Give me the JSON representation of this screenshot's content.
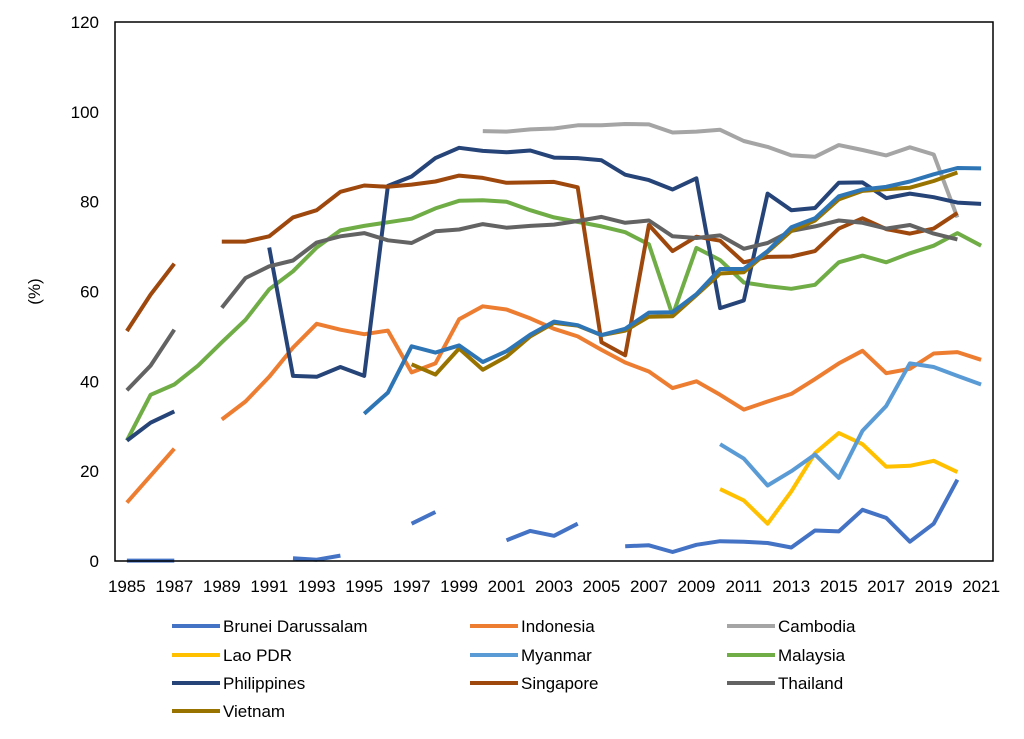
{
  "chart_data": {
    "type": "line",
    "title": "",
    "xlabel": "",
    "ylabel": "(%)",
    "xlim": [
      1985,
      2021
    ],
    "ylim": [
      0,
      120
    ],
    "yticks": [
      0,
      20,
      40,
      60,
      80,
      100,
      120
    ],
    "xticks": [
      1985,
      1987,
      1989,
      1991,
      1993,
      1995,
      1997,
      1999,
      2001,
      2003,
      2005,
      2007,
      2009,
      2011,
      2013,
      2015,
      2017,
      2019,
      2021
    ],
    "grid": false,
    "legend_position": "bottom",
    "x": [
      1985,
      1986,
      1987,
      1988,
      1989,
      1990,
      1991,
      1992,
      1993,
      1994,
      1995,
      1996,
      1997,
      1998,
      1999,
      2000,
      2001,
      2002,
      2003,
      2004,
      2005,
      2006,
      2007,
      2008,
      2009,
      2010,
      2011,
      2012,
      2013,
      2014,
      2015,
      2016,
      2017,
      2018,
      2019,
      2020,
      2021
    ],
    "series": [
      {
        "name": "Brunei Darussalam",
        "color": "#4472c4",
        "values": [
          0.1,
          0.1,
          0.1,
          null,
          null,
          null,
          null,
          0.6,
          0.3,
          1.2,
          null,
          null,
          8.3,
          10.9,
          null,
          null,
          4.6,
          6.7,
          5.6,
          8.3,
          null,
          3.3,
          3.5,
          2.0,
          3.6,
          4.4,
          4.3,
          4.0,
          3.0,
          6.8,
          6.6,
          11.4,
          9.6,
          4.3,
          8.3,
          18.1,
          null
        ]
      },
      {
        "name": "Indonesia",
        "color": "#ed7d31",
        "values": [
          13.0,
          19.0,
          25.0,
          null,
          31.5,
          35.5,
          41.0,
          47.5,
          52.8,
          51.5,
          50.5,
          51.3,
          42.0,
          44.0,
          53.8,
          56.7,
          56.0,
          54.0,
          51.7,
          50.0,
          47.0,
          44.2,
          42.2,
          38.5,
          40.0,
          37.0,
          33.7,
          35.5,
          37.2,
          40.5,
          44.0,
          46.8,
          41.8,
          42.8,
          46.2,
          46.5,
          44.8
        ]
      },
      {
        "name": "Cambodia",
        "color": "#a5a5a5",
        "values": [
          null,
          null,
          null,
          null,
          null,
          null,
          null,
          null,
          null,
          null,
          null,
          null,
          null,
          null,
          null,
          95.7,
          95.6,
          96.1,
          96.3,
          97.0,
          97.0,
          97.3,
          97.2,
          95.4,
          95.6,
          96.0,
          93.5,
          92.2,
          90.3,
          90.0,
          92.6,
          91.5,
          90.3,
          92.1,
          90.5,
          76.5,
          null
        ]
      },
      {
        "name": "Lao PDR",
        "color": "#ffc000",
        "values": [
          null,
          null,
          null,
          null,
          null,
          null,
          null,
          null,
          null,
          null,
          null,
          null,
          null,
          null,
          null,
          null,
          null,
          null,
          null,
          null,
          null,
          null,
          null,
          null,
          null,
          16.0,
          13.5,
          8.3,
          15.5,
          24.0,
          28.5,
          26.0,
          21.0,
          21.2,
          22.3,
          19.8,
          null
        ]
      },
      {
        "name": "Myanmar",
        "color": "#5b9bd5",
        "values": [
          null,
          null,
          null,
          null,
          null,
          null,
          null,
          null,
          null,
          null,
          null,
          null,
          null,
          null,
          null,
          null,
          null,
          null,
          null,
          null,
          null,
          null,
          null,
          null,
          null,
          26.0,
          22.8,
          16.8,
          20.0,
          23.7,
          18.5,
          29.0,
          34.5,
          44.0,
          43.2,
          41.2,
          39.3
        ]
      },
      {
        "name": "Malaysia",
        "color": "#70ad47",
        "values": [
          26.8,
          37.0,
          39.3,
          43.5,
          48.7,
          53.7,
          60.5,
          64.5,
          69.8,
          73.6,
          74.6,
          75.4,
          76.2,
          78.5,
          80.2,
          80.3,
          80.0,
          78.1,
          76.5,
          75.5,
          74.5,
          73.2,
          70.5,
          54.7,
          69.7,
          67.0,
          62.0,
          61.2,
          60.6,
          61.5,
          66.5,
          68.0,
          66.5,
          68.5,
          70.2,
          73.0,
          70.2
        ]
      },
      {
        "name": "Philippines",
        "color": "#264478",
        "values": [
          26.8,
          30.8,
          33.3,
          null,
          null,
          null,
          69.8,
          41.2,
          41.0,
          43.2,
          41.2,
          83.5,
          85.6,
          89.7,
          92.0,
          91.3,
          91.0,
          91.4,
          89.8,
          89.7,
          89.2,
          86.0,
          84.8,
          82.7,
          85.2,
          56.3,
          58.0,
          81.8,
          78.1,
          78.6,
          84.2,
          84.3,
          80.8,
          81.8,
          81.0,
          79.8,
          79.5
        ]
      },
      {
        "name": "Singapore",
        "color": "#9e480e",
        "values": [
          51.2,
          59.3,
          66.2,
          null,
          71.1,
          71.1,
          72.3,
          76.5,
          78.1,
          82.2,
          83.6,
          83.3,
          83.8,
          84.5,
          85.8,
          85.3,
          84.2,
          84.3,
          84.4,
          83.2,
          48.7,
          45.8,
          74.8,
          69.0,
          72.2,
          71.3,
          66.5,
          67.7,
          67.8,
          69.0,
          74.0,
          76.3,
          73.9,
          72.9,
          74.0,
          77.5,
          null
        ]
      },
      {
        "name": "Thailand",
        "color": "#636363",
        "values": [
          38.0,
          43.5,
          51.5,
          null,
          56.4,
          63.0,
          65.6,
          66.9,
          70.9,
          72.3,
          73.0,
          71.4,
          70.8,
          73.4,
          73.8,
          75.0,
          74.2,
          74.6,
          74.9,
          75.7,
          76.6,
          75.3,
          75.8,
          72.3,
          71.9,
          72.5,
          69.5,
          70.8,
          73.5,
          74.5,
          75.8,
          75.3,
          74.0,
          74.8,
          72.9,
          71.6,
          null
        ]
      },
      {
        "name": "Vietnam",
        "color": "#997300",
        "values": [
          null,
          null,
          null,
          null,
          null,
          null,
          null,
          null,
          null,
          null,
          null,
          null,
          43.8,
          41.5,
          47.3,
          42.6,
          45.5,
          50.0,
          53.0,
          52.4,
          50.3,
          51.3,
          54.4,
          54.5,
          59.2,
          64.0,
          64.3,
          68.8,
          73.5,
          75.8,
          80.5,
          82.4,
          82.8,
          83.1,
          84.6,
          86.5,
          null
        ]
      },
      {
        "name": "",
        "color": "#2e75b6",
        "values": [
          null,
          null,
          null,
          null,
          null,
          null,
          null,
          null,
          null,
          null,
          32.8,
          37.5,
          47.8,
          46.4,
          48.0,
          44.3,
          46.7,
          50.4,
          53.3,
          52.5,
          50.3,
          51.7,
          55.3,
          55.4,
          59.4,
          65.0,
          65.0,
          69.0,
          74.3,
          76.3,
          81.2,
          82.7,
          83.3,
          84.5,
          86.1,
          87.5,
          87.4
        ]
      }
    ]
  }
}
